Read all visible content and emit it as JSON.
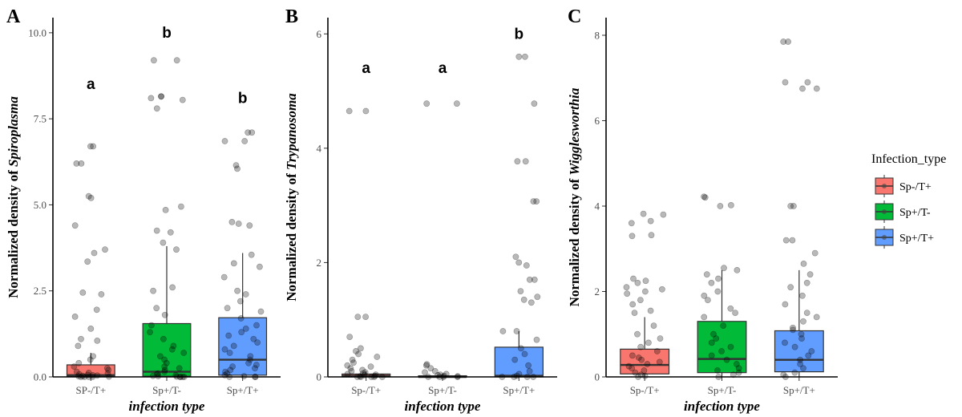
{
  "chart_data": [
    {
      "type": "box",
      "panel_label": "A",
      "ylabel_prefix": "Normalized density of ",
      "ylabel_italic": "Spiroplasma",
      "xlabel": "infection type",
      "ylim": [
        0,
        10.3
      ],
      "yticks": [
        "0.0",
        "2.5",
        "5.0",
        "7.5",
        "10.0"
      ],
      "ytick_values": [
        0,
        2.5,
        5.0,
        7.5,
        10.0
      ],
      "categories": [
        "SP-/T+",
        "Sp+/T-",
        "Sp+/T+"
      ],
      "letters": [
        "a",
        "b",
        "b"
      ],
      "letter_y": [
        8.5,
        10.0,
        8.1
      ],
      "boxes": [
        {
          "q1": 0.02,
          "median": 0.05,
          "q3": 0.35,
          "whisker_low": 0.0,
          "whisker_high": 0.7
        },
        {
          "q1": 0.02,
          "median": 0.15,
          "q3": 1.55,
          "whisker_low": 0.0,
          "whisker_high": 3.8
        },
        {
          "q1": 0.05,
          "median": 0.5,
          "q3": 1.72,
          "whisker_low": 0.0,
          "whisker_high": 3.6
        }
      ],
      "points": [
        [
          6.7,
          6.7,
          6.2,
          6.2,
          5.25,
          5.2,
          4.4,
          3.7,
          3.6,
          3.35,
          2.45,
          2.4,
          1.95,
          1.75,
          1.4,
          1.1,
          1.05,
          0.9,
          0.6,
          0.5,
          0.4,
          0.3,
          0.25,
          0.2,
          0.15,
          0.12,
          0.1,
          0.08,
          0.06,
          0.05,
          0.04,
          0.03,
          0.02,
          0.01,
          0.0,
          0.0,
          0.0,
          0.0
        ],
        [
          9.2,
          9.2,
          8.15,
          8.15,
          8.1,
          8.05,
          7.8,
          4.95,
          4.85,
          4.25,
          4.2,
          3.9,
          3.7,
          2.6,
          2.5,
          2.0,
          1.8,
          1.5,
          1.3,
          1.1,
          0.9,
          0.8,
          0.7,
          0.6,
          0.5,
          0.4,
          0.3,
          0.25,
          0.2,
          0.15,
          0.1,
          0.08,
          0.05,
          0.03,
          0.02,
          0.01,
          0.0,
          0.0,
          0.0,
          0.0
        ],
        [
          7.1,
          7.1,
          6.85,
          6.85,
          6.15,
          6.05,
          4.5,
          4.45,
          4.4,
          3.55,
          3.3,
          3.2,
          2.9,
          2.5,
          2.4,
          2.2,
          2.0,
          1.9,
          1.7,
          1.5,
          1.4,
          1.3,
          1.2,
          1.1,
          1.0,
          0.9,
          0.8,
          0.7,
          0.6,
          0.5,
          0.4,
          0.35,
          0.3,
          0.25,
          0.2,
          0.15,
          0.1,
          0.05,
          0.02,
          0.0,
          0.0,
          0.0
        ]
      ]
    },
    {
      "type": "box",
      "panel_label": "B",
      "ylabel_prefix": "Normalized density of ",
      "ylabel_italic": "Trypanosoma",
      "xlabel": "infection type",
      "ylim": [
        0,
        6.2
      ],
      "yticks": [
        "0",
        "2",
        "4",
        "6"
      ],
      "ytick_values": [
        0,
        2,
        4,
        6
      ],
      "categories": [
        "Sp-/T+",
        "Sp+/T-",
        "Sp+/T+"
      ],
      "letters": [
        "a",
        "a",
        "b"
      ],
      "letter_y": [
        5.4,
        5.4,
        6.0
      ],
      "boxes": [
        {
          "q1": 0.0,
          "median": 0.02,
          "q3": 0.05,
          "whisker_low": 0.0,
          "whisker_high": 0.1
        },
        {
          "q1": 0.0,
          "median": 0.0,
          "q3": 0.02,
          "whisker_low": 0.0,
          "whisker_high": 0.05
        },
        {
          "q1": 0.0,
          "median": 0.02,
          "q3": 0.52,
          "whisker_low": 0.0,
          "whisker_high": 0.8
        }
      ],
      "points": [
        [
          4.65,
          4.65,
          1.05,
          1.05,
          0.7,
          0.5,
          0.45,
          0.4,
          0.35,
          0.3,
          0.25,
          0.2,
          0.18,
          0.15,
          0.12,
          0.1,
          0.08,
          0.06,
          0.05,
          0.04,
          0.03,
          0.02,
          0.01,
          0.0,
          0.0,
          0.0,
          0.0,
          0.0
        ],
        [
          4.78,
          4.78,
          0.22,
          0.2,
          0.15,
          0.1,
          0.08,
          0.05,
          0.04,
          0.03,
          0.02,
          0.01,
          0.0,
          0.0,
          0.0,
          0.0
        ],
        [
          5.6,
          5.6,
          4.78,
          3.77,
          3.77,
          3.07,
          3.07,
          2.1,
          2.0,
          1.95,
          1.7,
          1.7,
          1.5,
          1.4,
          1.35,
          1.3,
          0.8,
          0.8,
          0.65,
          0.5,
          0.4,
          0.3,
          0.2,
          0.1,
          0.05,
          0.02,
          0.0,
          0.0,
          0.0,
          0.0
        ]
      ]
    },
    {
      "type": "box",
      "panel_label": "C",
      "ylabel_prefix": "Normalized density of ",
      "ylabel_italic": "Wigglesworthia",
      "xlabel": "infection type",
      "ylim": [
        0,
        8.3
      ],
      "yticks": [
        "0",
        "2",
        "4",
        "6",
        "8"
      ],
      "ytick_values": [
        0,
        2,
        4,
        6,
        8
      ],
      "categories": [
        "Sp-/T+",
        "Sp+/T-",
        "Sp+/T+"
      ],
      "letters": [
        "",
        "",
        ""
      ],
      "letter_y": [
        0,
        0,
        0
      ],
      "boxes": [
        {
          "q1": 0.07,
          "median": 0.28,
          "q3": 0.65,
          "whisker_low": 0.0,
          "whisker_high": 1.4
        },
        {
          "q1": 0.1,
          "median": 0.42,
          "q3": 1.3,
          "whisker_low": 0.0,
          "whisker_high": 2.5
        },
        {
          "q1": 0.12,
          "median": 0.4,
          "q3": 1.08,
          "whisker_low": 0.0,
          "whisker_high": 2.5
        }
      ],
      "points": [
        [
          3.82,
          3.8,
          3.65,
          3.6,
          3.32,
          3.3,
          2.3,
          2.25,
          2.2,
          2.1,
          2.05,
          2.0,
          1.95,
          1.8,
          1.7,
          1.55,
          1.5,
          1.2,
          1.0,
          0.9,
          0.8,
          0.7,
          0.6,
          0.5,
          0.45,
          0.4,
          0.35,
          0.3,
          0.25,
          0.2,
          0.15,
          0.1,
          0.05,
          0.02,
          0.0
        ],
        [
          4.22,
          4.2,
          4.02,
          4.0,
          2.55,
          2.5,
          2.4,
          2.3,
          2.2,
          2.0,
          1.9,
          1.8,
          1.6,
          1.5,
          1.4,
          1.2,
          1.0,
          0.9,
          0.8,
          0.7,
          0.6,
          0.5,
          0.4,
          0.3,
          0.2,
          0.15,
          0.1,
          0.05,
          0.0
        ],
        [
          7.85,
          7.85,
          6.9,
          6.9,
          6.75,
          6.75,
          4.0,
          4.0,
          3.2,
          3.2,
          2.9,
          2.65,
          2.4,
          2.2,
          2.1,
          1.9,
          1.7,
          1.5,
          1.4,
          1.3,
          1.15,
          1.1,
          1.0,
          0.9,
          0.8,
          0.7,
          0.6,
          0.5,
          0.4,
          0.3,
          0.2,
          0.1,
          0.05,
          0.0
        ]
      ]
    }
  ],
  "legend": {
    "title": "Infection_type",
    "items": [
      {
        "label": "Sp-/T+",
        "color": "#F8766D"
      },
      {
        "label": "Sp+/T-",
        "color": "#00BA38"
      },
      {
        "label": "Sp+/T+",
        "color": "#619CFF"
      }
    ]
  }
}
